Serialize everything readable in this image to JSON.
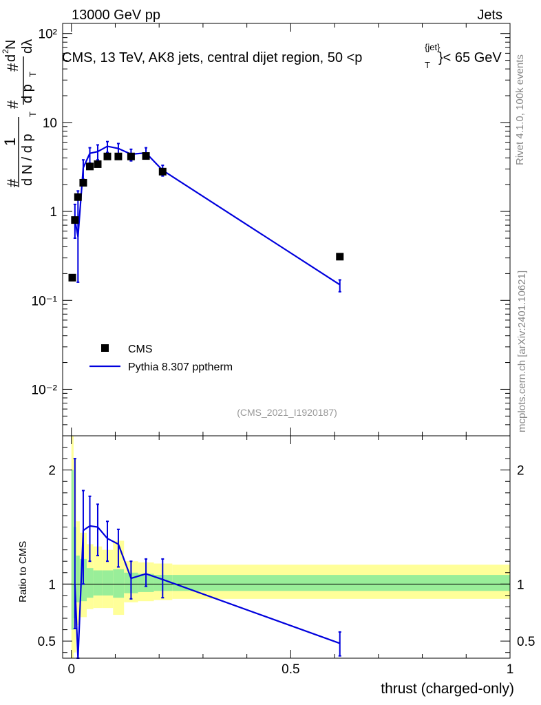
{
  "header": {
    "left": "13000 GeV pp",
    "right": "Jets",
    "title": "CMS, 13 TeV, AK8 jets, central dijet region, 50 <p",
    "title_sup": "{jet}",
    "title_sub": "T",
    "title_end": "}< 65 GeV"
  },
  "side": {
    "rivet": "Rivet 4.1.0,  100k events",
    "mcplots": "mcplots.cern.ch [arXiv:2401.10621]"
  },
  "watermark": "(CMS_2021_I1920187)",
  "ylabel_top": {
    "hash1": "#",
    "one": "1",
    "dN": "d N / d p",
    "T1": "T",
    "hash2": "#",
    "dpT": "d p",
    "T2": "T",
    "hash3": "#",
    "d2N": "d",
    "two": "2",
    "N": "N",
    "dlambda": "dλ"
  },
  "ylabel_bottom": "Ratio to CMS",
  "xlabel": "thrust (charged-only)",
  "legend": {
    "cms": "CMS",
    "pythia": "Pythia 8.307 pptherm"
  },
  "colors": {
    "mc": "#0000dd",
    "band_inner": "#99ee99",
    "band_outer": "#ffff99",
    "data": "#000000"
  },
  "chart_data": {
    "type": "scatter",
    "xlim": [
      -0.02,
      1.0
    ],
    "main": {
      "yscale": "log",
      "ylim": [
        0.003,
        130
      ],
      "ytick_labels": [
        "10⁻²",
        "10⁻¹",
        "1",
        "10",
        "10²"
      ],
      "ytick_values": [
        0.01,
        0.1,
        1,
        10,
        100
      ],
      "xtick_values": [
        0,
        0.5,
        1
      ],
      "cms": {
        "x": [
          0.002,
          0.008,
          0.015,
          0.027,
          0.042,
          0.06,
          0.082,
          0.107,
          0.136,
          0.17,
          0.208,
          0.612
        ],
        "y": [
          0.18,
          0.8,
          1.45,
          2.1,
          3.2,
          3.4,
          4.15,
          4.15,
          4.15,
          4.2,
          2.8,
          0.31
        ]
      },
      "pythia": {
        "x": [
          0.008,
          0.015,
          0.027,
          0.042,
          0.06,
          0.082,
          0.107,
          0.136,
          0.17,
          0.208,
          0.612
        ],
        "y": [
          0.8,
          0.52,
          3.1,
          4.5,
          4.7,
          5.4,
          5.1,
          4.4,
          4.55,
          2.9,
          0.15
        ],
        "err_lo": [
          0.5,
          0.16,
          2.3,
          3.5,
          3.8,
          4.6,
          4.4,
          3.7,
          4.1,
          2.5,
          0.125
        ],
        "err_hi": [
          1.2,
          1.7,
          3.8,
          5.2,
          5.6,
          6.1,
          5.8,
          5.0,
          5.2,
          3.3,
          0.17
        ]
      }
    },
    "ratio": {
      "ylim": [
        0.35,
        2.3
      ],
      "ytick_labels": [
        "0.5",
        "1",
        "2"
      ],
      "ytick_values": [
        0.5,
        1,
        2
      ],
      "xtick_labels": [
        "0",
        "0.5",
        "1"
      ],
      "xtick_values": [
        0,
        0.5,
        1
      ],
      "bin_edges": [
        0,
        0.005,
        0.011,
        0.019,
        0.035,
        0.05,
        0.07,
        0.095,
        0.12,
        0.152,
        0.188,
        0.23,
        1.0
      ],
      "band_inner_lo": [
        0.6,
        0.7,
        0.84,
        0.85,
        0.88,
        0.9,
        0.9,
        0.88,
        0.92,
        0.93,
        0.94,
        0.94
      ],
      "band_inner_hi": [
        2.0,
        1.5,
        1.25,
        1.22,
        1.14,
        1.12,
        1.12,
        1.13,
        1.1,
        1.09,
        1.08,
        1.08
      ],
      "band_outer_lo": [
        0.35,
        0.4,
        0.64,
        0.71,
        0.78,
        0.79,
        0.79,
        0.73,
        0.84,
        0.85,
        0.86,
        0.87
      ],
      "band_outer_hi": [
        2.3,
        2.1,
        1.55,
        1.45,
        1.35,
        1.33,
        1.3,
        1.38,
        1.2,
        1.19,
        1.18,
        1.17
      ],
      "pythia": {
        "x": [
          0.008,
          0.015,
          0.027,
          0.042,
          0.06,
          0.082,
          0.107,
          0.136,
          0.17,
          0.208,
          0.612
        ],
        "y": [
          1.0,
          0.35,
          1.47,
          1.51,
          1.5,
          1.4,
          1.35,
          1.05,
          1.09,
          1.04,
          0.48
        ],
        "err_lo": [
          0.61,
          0.35,
          1.0,
          1.2,
          1.25,
          1.2,
          1.15,
          0.87,
          0.98,
          0.88,
          0.37
        ],
        "err_hi": [
          2.1,
          0.35,
          1.82,
          1.77,
          1.7,
          1.55,
          1.48,
          1.2,
          1.22,
          1.22,
          0.58
        ]
      }
    }
  }
}
